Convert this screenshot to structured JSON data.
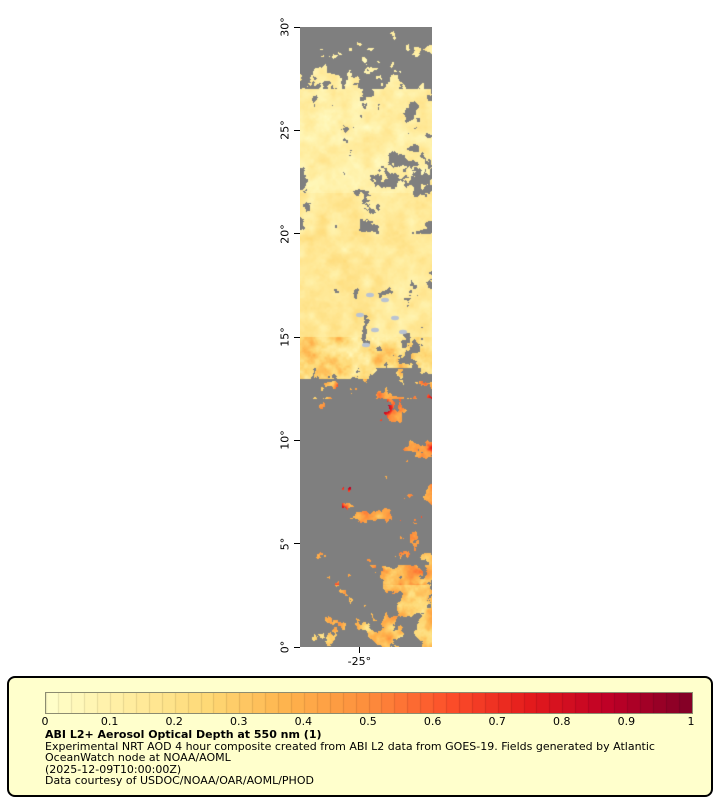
{
  "figure": {
    "y_ticks": [
      {
        "label": "30°",
        "lat": 30
      },
      {
        "label": "25°",
        "lat": 25
      },
      {
        "label": "20°",
        "lat": 20
      },
      {
        "label": "15°",
        "lat": 15
      },
      {
        "label": "10°",
        "lat": 10
      },
      {
        "label": "5°",
        "lat": 5
      },
      {
        "label": "0°",
        "lat": 0
      }
    ],
    "x_ticks": [
      {
        "label": "-25°",
        "frac": 0.45
      }
    ]
  },
  "legend": {
    "background": "#ffffcc",
    "border_color": "#000000",
    "colorbar_ticks": [
      "0",
      "0.1",
      "0.2",
      "0.3",
      "0.4",
      "0.5",
      "0.6",
      "0.7",
      "0.8",
      "0.9",
      "1"
    ],
    "title": "ABI L2+ Aerosol Optical Depth at 550 nm (1)",
    "lines": [
      "Experimental NRT AOD 4 hour composite created from ABI L2 data from GOES-19. Fields generated by Atlantic",
      "OceanWatch node at NOAA/AOML",
      "(2025-12-09T10:00:00Z)",
      "Data courtesy of USDOC/NOAA/OAR/AOML/PHOD"
    ]
  },
  "chart_data": {
    "type": "heatmap",
    "title": "ABI L2+ Aerosol Optical Depth at 550 nm (1)",
    "subtitle": "Experimental NRT AOD 4 hour composite created from ABI L2 data from GOES-19. Fields generated by Atlantic OceanWatch node at NOAA/AOML (2025-12-09T10:00:00Z)",
    "source": "Data courtesy of USDOC/NOAA/OAR/AOML/PHOD",
    "x_axis": {
      "tick_labels": [
        "-25°"
      ]
    },
    "y_axis": {
      "tick_labels": [
        "30°",
        "25°",
        "20°",
        "15°",
        "10°",
        "5°",
        "0°"
      ],
      "range": [
        0,
        30
      ]
    },
    "colorbar": {
      "min": 0,
      "max": 1,
      "tick_labels": [
        "0",
        "0.1",
        "0.2",
        "0.3",
        "0.4",
        "0.5",
        "0.6",
        "0.7",
        "0.8",
        "0.9",
        "1"
      ],
      "palette": [
        "#ffffcc",
        "#ffeda0",
        "#fed976",
        "#feb24c",
        "#fd8d3c",
        "#fc4e2a",
        "#e31a1c",
        "#bd0026",
        "#800026"
      ],
      "nodata_color": "#7f7f7f"
    },
    "latitude_bands_estimated_aod": [
      {
        "lat_range": [
          20,
          30
        ],
        "approx_aod": 0.15,
        "note": "pale yellow haze with scattered gray no-data gaps, heaviest masking near 30N"
      },
      {
        "lat_range": [
          13,
          20
        ],
        "approx_aod": 0.2,
        "note": "mostly continuous pale yellow-orange field, few small bright cloud specks near 14-16N"
      },
      {
        "lat_range": [
          8,
          13
        ],
        "approx_aod": 0.55,
        "note": "dust plume: orange to deep red patches up to ~0.9, heavy gray masking on west side"
      },
      {
        "lat_range": [
          0,
          8
        ],
        "approx_aod": 0.4,
        "note": "patchy orange/yellow, mostly gray no-data toward western edge"
      }
    ]
  }
}
